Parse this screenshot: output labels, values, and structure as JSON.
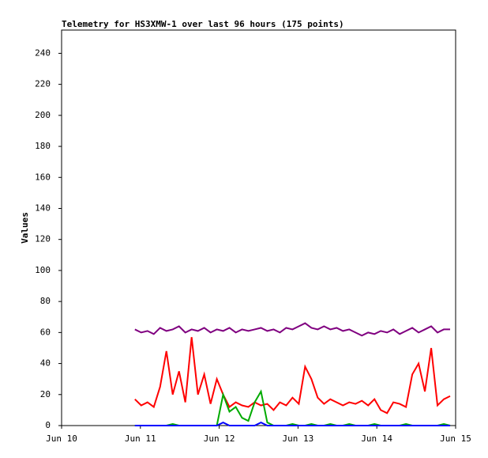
{
  "chart_data": {
    "type": "line",
    "title": "Telemetry for HS3XMW-1 over last 96 hours (175 points)",
    "y_label": "Values",
    "x": [
      0.93,
      1.01,
      1.09,
      1.17,
      1.25,
      1.33,
      1.41,
      1.49,
      1.57,
      1.65,
      1.73,
      1.81,
      1.89,
      1.97,
      2.05,
      2.13,
      2.21,
      2.29,
      2.37,
      2.45,
      2.53,
      2.61,
      2.69,
      2.77,
      2.85,
      2.93,
      3.01,
      3.09,
      3.17,
      3.25,
      3.33,
      3.41,
      3.49,
      3.57,
      3.65,
      3.73,
      3.81,
      3.89,
      3.97,
      4.05,
      4.13,
      4.21,
      4.29,
      4.37,
      4.45,
      4.53,
      4.61,
      4.69,
      4.77,
      4.85,
      4.93
    ],
    "series": [
      {
        "color": "#800080",
        "values": [
          62,
          60,
          61,
          59,
          63,
          61,
          62,
          64,
          60,
          62,
          61,
          63,
          60,
          62,
          61,
          63,
          60,
          62,
          61,
          62,
          63,
          61,
          62,
          60,
          63,
          62,
          64,
          66,
          63,
          62,
          64,
          62,
          63,
          61,
          62,
          60,
          58,
          60,
          59,
          61,
          60,
          62,
          59,
          61,
          63,
          60,
          62,
          64,
          60,
          62,
          62
        ]
      },
      {
        "color": "#ff0000",
        "values": [
          17,
          13,
          15,
          12,
          25,
          48,
          20,
          35,
          15,
          57,
          20,
          33,
          14,
          30,
          20,
          12,
          15,
          13,
          12,
          15,
          13,
          14,
          10,
          15,
          13,
          18,
          14,
          38,
          30,
          18,
          14,
          17,
          15,
          13,
          15,
          14,
          16,
          13,
          17,
          10,
          8,
          15,
          14,
          12,
          33,
          40,
          22,
          50,
          13,
          17,
          19
        ]
      },
      {
        "color": "#00aa00",
        "values": [
          0,
          0,
          0,
          0,
          0,
          0,
          1,
          0,
          0,
          0,
          0,
          0,
          0,
          0,
          20,
          9,
          12,
          5,
          3,
          15,
          22,
          2,
          0,
          0,
          0,
          1,
          0,
          0,
          1,
          0,
          0,
          1,
          0,
          0,
          1,
          0,
          0,
          0,
          1,
          0,
          0,
          0,
          0,
          1,
          0,
          0,
          0,
          0,
          0,
          1,
          0
        ]
      },
      {
        "color": "#0000ff",
        "values": [
          0,
          0,
          0,
          0,
          0,
          0,
          0,
          0,
          0,
          0,
          0,
          0,
          0,
          0,
          2,
          0,
          0,
          0,
          0,
          0,
          2,
          0,
          0,
          0,
          0,
          0,
          0,
          0,
          0,
          0,
          0,
          0,
          0,
          0,
          0,
          0,
          0,
          0,
          0,
          0,
          0,
          0,
          0,
          0,
          0,
          0,
          0,
          0,
          0,
          0,
          0
        ]
      }
    ],
    "xlim": [
      0,
      5
    ],
    "xticks": [
      {
        "value": 0,
        "label": "Jun 10"
      },
      {
        "value": 1,
        "label": "Jun 11"
      },
      {
        "value": 2,
        "label": "Jun 12"
      },
      {
        "value": 3,
        "label": "Jun 13"
      },
      {
        "value": 4,
        "label": "Jun 14"
      },
      {
        "value": 5,
        "label": "Jun 15"
      }
    ],
    "ylim": [
      0,
      255
    ],
    "yticks": [
      0,
      20,
      40,
      60,
      80,
      100,
      120,
      140,
      160,
      180,
      200,
      220,
      240
    ]
  }
}
